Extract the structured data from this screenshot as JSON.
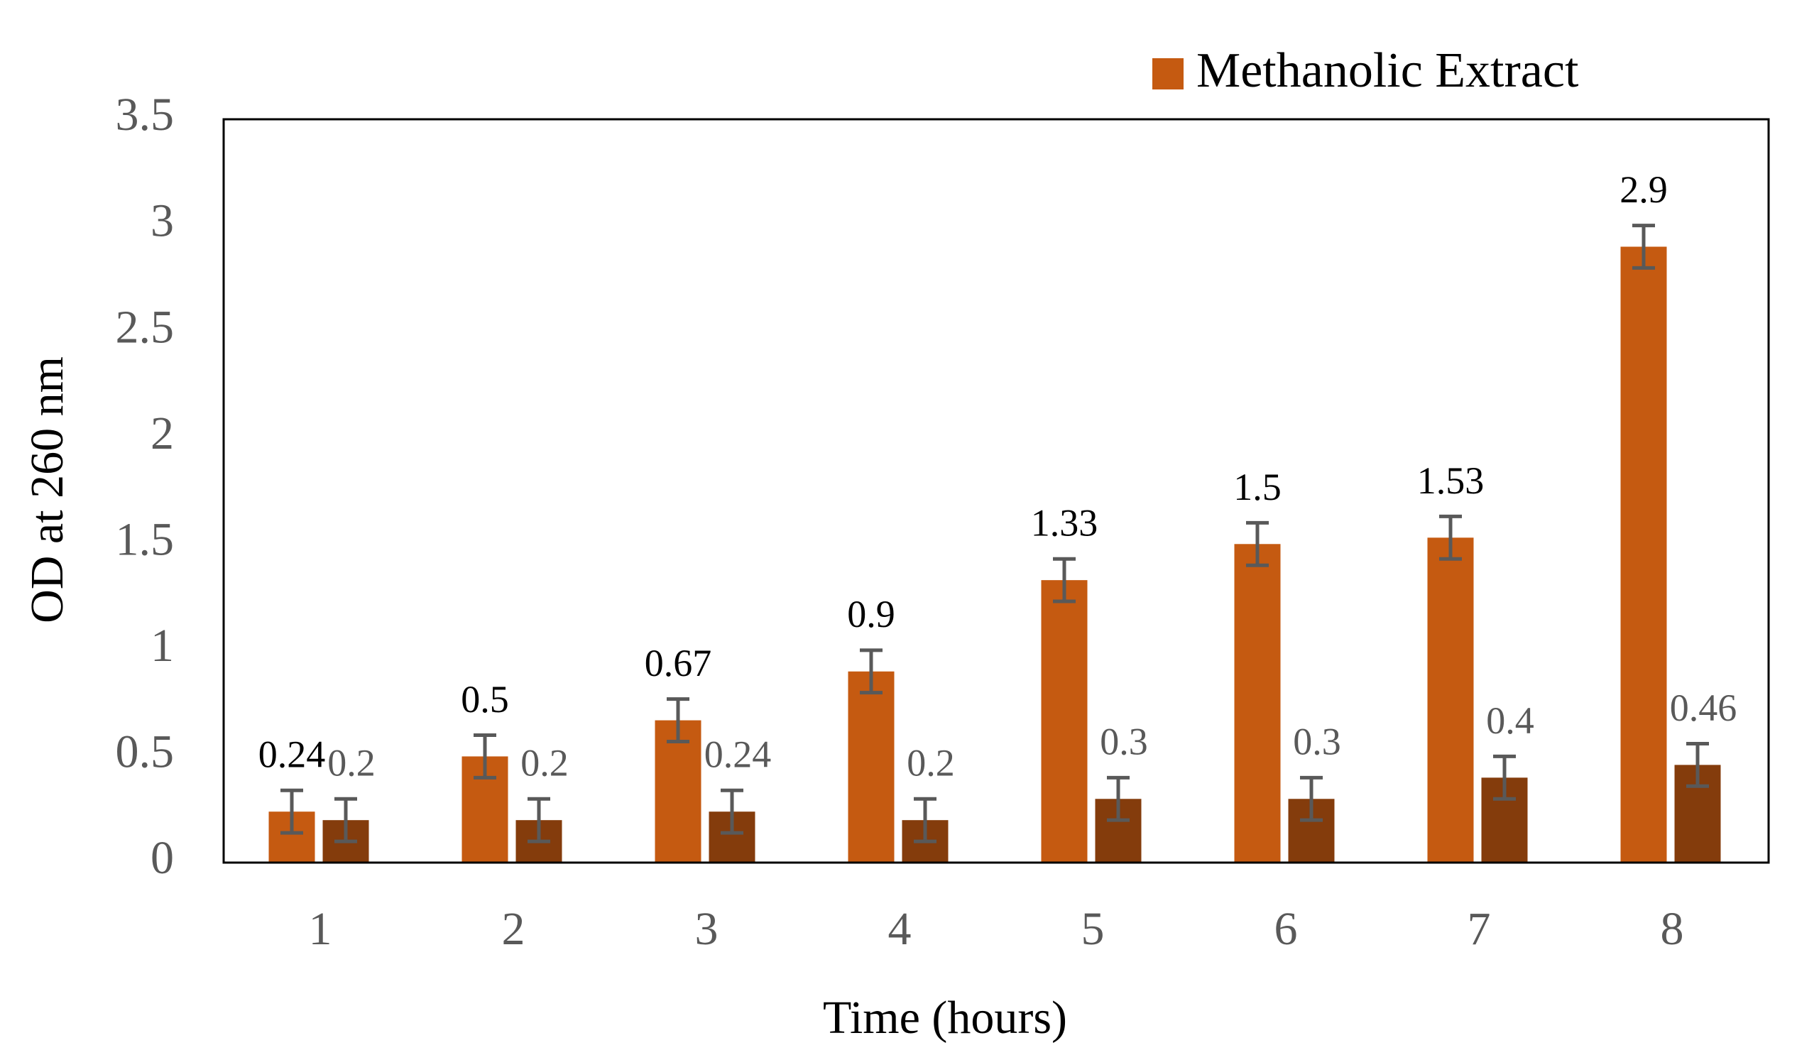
{
  "chart_data": {
    "type": "bar",
    "x_label": "Time (hours)",
    "y_label": "OD at 260 nm",
    "categories": [
      "1",
      "2",
      "3",
      "4",
      "5",
      "6",
      "7",
      "8"
    ],
    "series": [
      {
        "name": "Methanolic Extract",
        "color": "#c55a11",
        "values": [
          0.24,
          0.5,
          0.67,
          0.9,
          1.33,
          1.5,
          1.53,
          2.9
        ],
        "errors": [
          0.1,
          0.1,
          0.1,
          0.1,
          0.1,
          0.1,
          0.1,
          0.1
        ]
      },
      {
        "color": "#843c0c",
        "values": [
          0.2,
          0.2,
          0.24,
          0.2,
          0.3,
          0.3,
          0.4,
          0.46
        ],
        "errors": [
          0.1,
          0.1,
          0.1,
          0.1,
          0.1,
          0.1,
          0.1,
          0.1
        ]
      }
    ],
    "error_color": "#595959",
    "ylim": [
      0,
      3.5
    ],
    "yticks": [
      0,
      0.5,
      1,
      1.5,
      2,
      2.5,
      3,
      3.5
    ],
    "grid": false,
    "legend": "top-right"
  }
}
